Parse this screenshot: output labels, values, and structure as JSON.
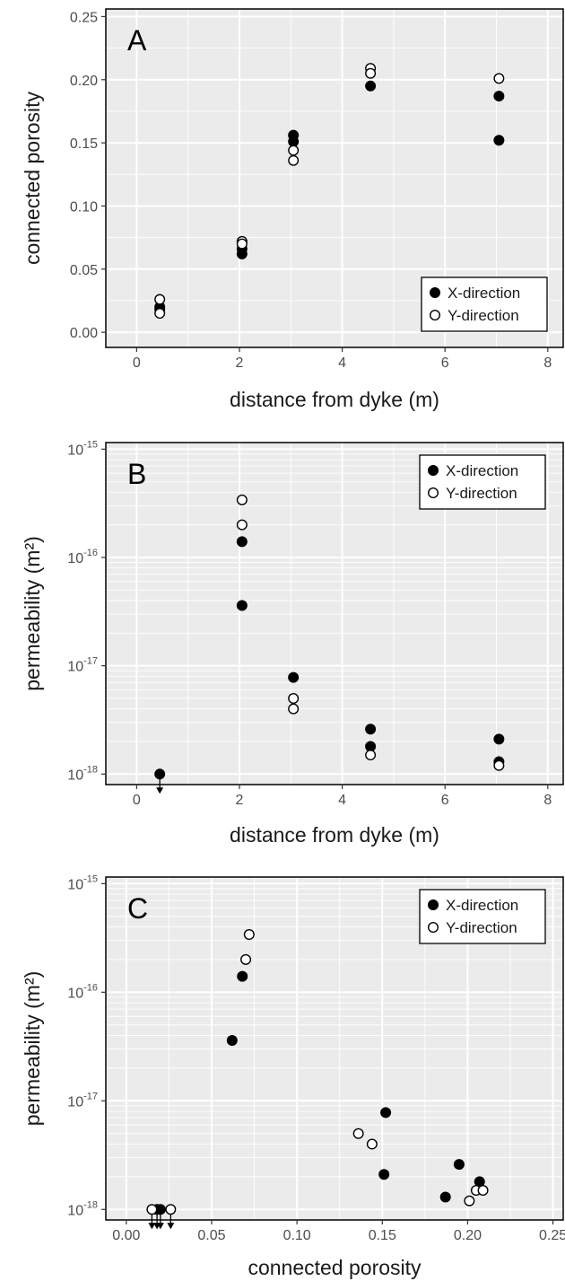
{
  "chart_data": [
    {
      "type": "scatter",
      "panel_label": "A",
      "xlabel": "distance from dyke (m)",
      "ylabel": "connected porosity",
      "xlim": [
        -0.6,
        8.3
      ],
      "ylim": [
        -0.012,
        0.256
      ],
      "y_scale": "linear",
      "x_ticks": [
        0,
        2,
        4,
        6,
        8
      ],
      "x_tick_labels": [
        "0",
        "2",
        "4",
        "6",
        "8"
      ],
      "y_ticks": [
        0.0,
        0.05,
        0.1,
        0.15,
        0.2,
        0.25
      ],
      "y_tick_labels": [
        "0.00",
        "0.05",
        "0.10",
        "0.15",
        "0.20",
        "0.25"
      ],
      "grid": true,
      "legend_position": "bottom-right",
      "series": [
        {
          "name": "X-direction",
          "marker": "filled",
          "points": [
            {
              "x": 0.45,
              "y": 0.018
            },
            {
              "x": 0.45,
              "y": 0.02
            },
            {
              "x": 2.05,
              "y": 0.062
            },
            {
              "x": 2.05,
              "y": 0.066
            },
            {
              "x": 3.05,
              "y": 0.151
            },
            {
              "x": 3.05,
              "y": 0.156
            },
            {
              "x": 4.55,
              "y": 0.195
            },
            {
              "x": 7.05,
              "y": 0.187
            },
            {
              "x": 7.05,
              "y": 0.152
            }
          ]
        },
        {
          "name": "Y-direction",
          "marker": "open",
          "points": [
            {
              "x": 0.45,
              "y": 0.026
            },
            {
              "x": 0.45,
              "y": 0.015
            },
            {
              "x": 2.05,
              "y": 0.072
            },
            {
              "x": 2.05,
              "y": 0.07
            },
            {
              "x": 3.05,
              "y": 0.144
            },
            {
              "x": 3.05,
              "y": 0.136
            },
            {
              "x": 4.55,
              "y": 0.209
            },
            {
              "x": 4.55,
              "y": 0.205
            },
            {
              "x": 7.05,
              "y": 0.201
            }
          ]
        }
      ]
    },
    {
      "type": "scatter",
      "panel_label": "B",
      "xlabel": "distance from dyke (m)",
      "ylabel": "permeability (m²)",
      "xlim": [
        -0.6,
        8.3
      ],
      "ylim": [
        8e-19,
        1.15e-15
      ],
      "y_scale": "log",
      "x_ticks": [
        0,
        2,
        4,
        6,
        8
      ],
      "x_tick_labels": [
        "0",
        "2",
        "4",
        "6",
        "8"
      ],
      "y_ticks": [
        1e-18,
        1e-17,
        1e-16,
        1e-15
      ],
      "y_tick_labels": [
        {
          "base": "10",
          "exp": "-18"
        },
        {
          "base": "10",
          "exp": "-17"
        },
        {
          "base": "10",
          "exp": "-16"
        },
        {
          "base": "10",
          "exp": "-15"
        }
      ],
      "grid": true,
      "legend_position": "top-right",
      "series": [
        {
          "name": "X-direction",
          "marker": "filled",
          "points": [
            {
              "x": 0.45,
              "y": 1e-18,
              "upper_limit": true
            },
            {
              "x": 2.05,
              "y": 1.4e-16
            },
            {
              "x": 2.05,
              "y": 3.6e-17
            },
            {
              "x": 3.05,
              "y": 7.8e-18
            },
            {
              "x": 4.55,
              "y": 2.6e-18
            },
            {
              "x": 4.55,
              "y": 1.8e-18
            },
            {
              "x": 7.05,
              "y": 2.1e-18
            },
            {
              "x": 7.05,
              "y": 1.3e-18
            }
          ]
        },
        {
          "name": "Y-direction",
          "marker": "open",
          "points": [
            {
              "x": 2.05,
              "y": 3.4e-16
            },
            {
              "x": 2.05,
              "y": 2e-16
            },
            {
              "x": 3.05,
              "y": 5e-18
            },
            {
              "x": 3.05,
              "y": 4e-18
            },
            {
              "x": 4.55,
              "y": 1.5e-18
            },
            {
              "x": 7.05,
              "y": 1.2e-18
            }
          ]
        }
      ]
    },
    {
      "type": "scatter",
      "panel_label": "C",
      "xlabel": "connected porosity",
      "ylabel": "permeability (m²)",
      "xlim": [
        -0.012,
        0.256
      ],
      "ylim": [
        8e-19,
        1.15e-15
      ],
      "y_scale": "log",
      "x_ticks": [
        0.0,
        0.05,
        0.1,
        0.15,
        0.2,
        0.25
      ],
      "x_tick_labels": [
        "0.00",
        "0.05",
        "0.10",
        "0.15",
        "0.20",
        "0.25"
      ],
      "y_ticks": [
        1e-18,
        1e-17,
        1e-16,
        1e-15
      ],
      "y_tick_labels": [
        {
          "base": "10",
          "exp": "-18"
        },
        {
          "base": "10",
          "exp": "-17"
        },
        {
          "base": "10",
          "exp": "-16"
        },
        {
          "base": "10",
          "exp": "-15"
        }
      ],
      "grid": true,
      "legend_position": "top-right",
      "series": [
        {
          "name": "X-direction",
          "marker": "filled",
          "points": [
            {
              "x": 0.018,
              "y": 1e-18,
              "upper_limit": true
            },
            {
              "x": 0.02,
              "y": 1e-18,
              "upper_limit": true
            },
            {
              "x": 0.062,
              "y": 3.6e-17
            },
            {
              "x": 0.068,
              "y": 1.4e-16
            },
            {
              "x": 0.152,
              "y": 7.8e-18
            },
            {
              "x": 0.151,
              "y": 2.1e-18
            },
            {
              "x": 0.195,
              "y": 2.6e-18
            },
            {
              "x": 0.187,
              "y": 1.3e-18
            },
            {
              "x": 0.207,
              "y": 1.8e-18
            }
          ]
        },
        {
          "name": "Y-direction",
          "marker": "open",
          "points": [
            {
              "x": 0.015,
              "y": 1e-18,
              "upper_limit": true
            },
            {
              "x": 0.026,
              "y": 1e-18,
              "upper_limit": true
            },
            {
              "x": 0.072,
              "y": 3.4e-16
            },
            {
              "x": 0.07,
              "y": 2e-16
            },
            {
              "x": 0.136,
              "y": 5e-18
            },
            {
              "x": 0.144,
              "y": 4e-18
            },
            {
              "x": 0.205,
              "y": 1.5e-18
            },
            {
              "x": 0.209,
              "y": 1.5e-18
            },
            {
              "x": 0.201,
              "y": 1.2e-18
            }
          ]
        }
      ]
    }
  ]
}
